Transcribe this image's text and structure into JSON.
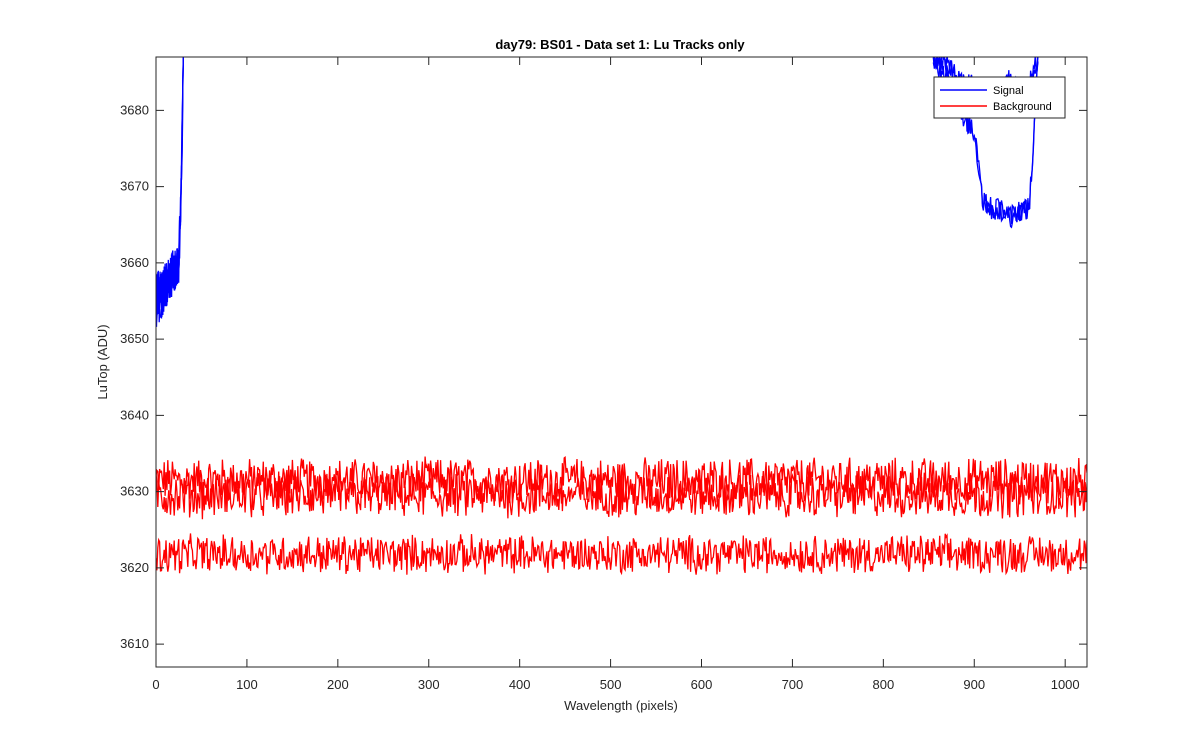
{
  "chart_data": {
    "type": "line",
    "title": "day79: BS01 - Data set 1: Lu Tracks only",
    "xlabel": "Wavelength (pixels)",
    "ylabel": "LuTop (ADU)",
    "xlim": [
      0,
      1024
    ],
    "ylim": [
      3607,
      3687
    ],
    "xticks": [
      0,
      100,
      200,
      300,
      400,
      500,
      600,
      700,
      800,
      900,
      1000
    ],
    "yticks": [
      3610,
      3620,
      3630,
      3640,
      3650,
      3660,
      3670,
      3680
    ],
    "grid": false,
    "legend_position": "top-right",
    "legend": [
      {
        "label": "Signal",
        "color": "#0000ff"
      },
      {
        "label": "Background",
        "color": "#ff0000"
      }
    ],
    "series": [
      {
        "name": "Signal",
        "color": "#0000ff",
        "note_visible_segments": "left edge rises from ~3651-3662 (x 0-25) off top of axes by x~29; right segment visible x~855-970",
        "left_segment": {
          "x": [
            0,
            5,
            10,
            15,
            20,
            25,
            28,
            30
          ],
          "y_low": [
            3651,
            3652,
            3654,
            3655,
            3656,
            3657,
            3665,
            3687
          ],
          "y_high": [
            3659,
            3659,
            3660,
            3661,
            3662,
            3662,
            3675,
            3687
          ]
        },
        "right_segment": {
          "x": [
            855,
            870,
            885,
            900,
            910,
            920,
            930,
            940,
            950,
            960,
            965,
            970
          ],
          "upper_y": [
            3687,
            3686,
            3684,
            3683,
            3681,
            3682,
            3683,
            3684,
            3682,
            3683,
            3685,
            3687
          ],
          "lower_y": [
            3687,
            3684,
            3680,
            3677,
            3668,
            3667,
            3667,
            3666,
            3667,
            3667,
            3675,
            3687
          ]
        }
      },
      {
        "name": "Background",
        "color": "#ff0000",
        "note_visible_segments": "three noisy traces spanning full x range",
        "traces": [
          {
            "mean": 3631.5,
            "amplitude": 2.6
          },
          {
            "mean": 3629.5,
            "amplitude": 2.6
          },
          {
            "mean": 3621.8,
            "amplitude": 2.2
          }
        ]
      }
    ]
  }
}
